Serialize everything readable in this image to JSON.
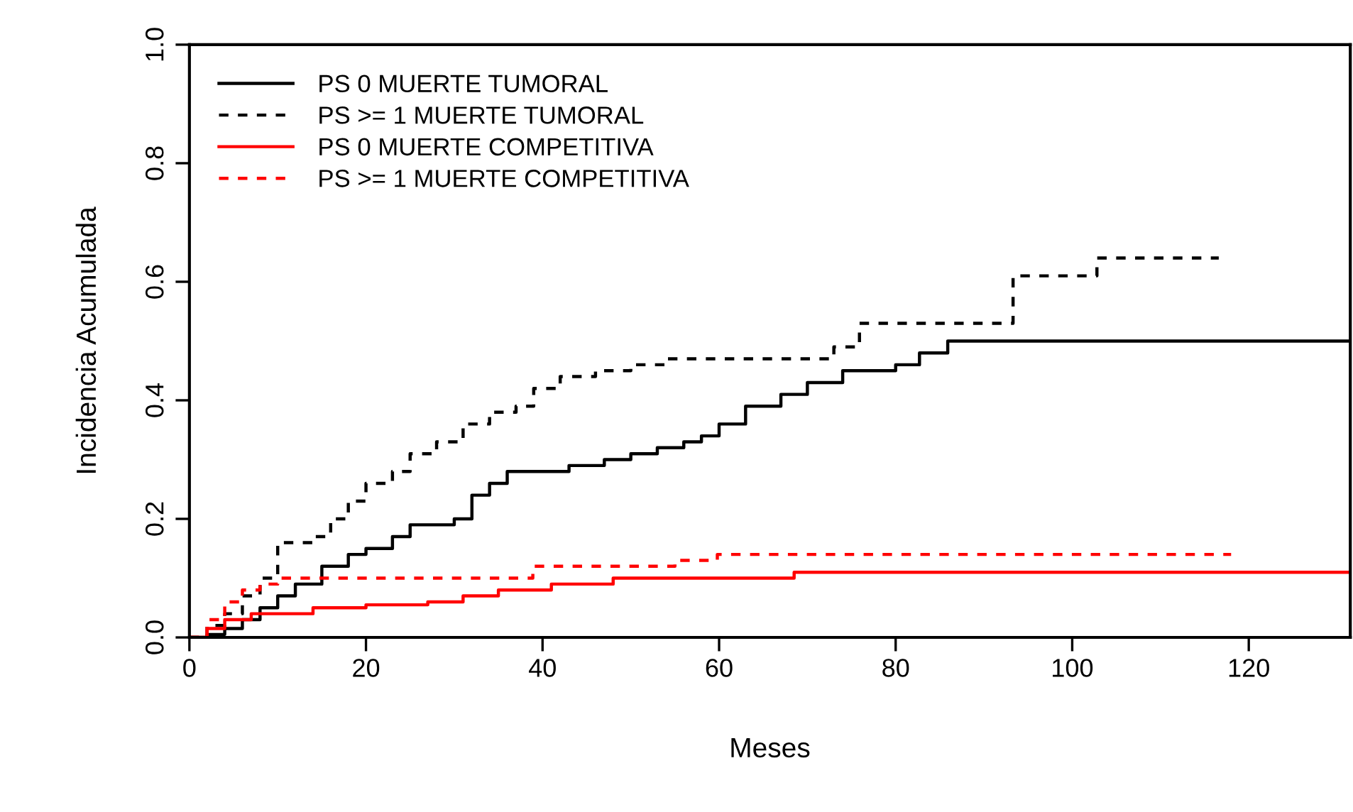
{
  "chart_data": {
    "type": "step",
    "xlabel": "Meses",
    "ylabel": "Incidencia Acumulada",
    "xlim": [
      0,
      131.5
    ],
    "ylim": [
      0,
      1
    ],
    "xticks": [
      0,
      20,
      40,
      60,
      80,
      100,
      120
    ],
    "yticks": [
      {
        "value": 0,
        "label": "0.0"
      },
      {
        "value": 0.2,
        "label": "0.2"
      },
      {
        "value": 0.4,
        "label": "0.4"
      },
      {
        "value": 0.6,
        "label": "0.6"
      },
      {
        "value": 0.8,
        "label": "0.8"
      },
      {
        "value": 1,
        "label": "1.0"
      }
    ],
    "legend": "top left",
    "grid": false,
    "series": [
      {
        "name": "PS 0 MUERTE TUMORAL",
        "color": "#000000",
        "line_style": "solid",
        "x": [
          0,
          2,
          4,
          6,
          8,
          10,
          12,
          15,
          18,
          20,
          23,
          25,
          30,
          32,
          34,
          36,
          40,
          43,
          47,
          50,
          53,
          56,
          58,
          60,
          63,
          67,
          70,
          74,
          80,
          82.7,
          85.9,
          131.5
        ],
        "values": [
          0,
          0.005,
          0.015,
          0.03,
          0.05,
          0.07,
          0.09,
          0.12,
          0.14,
          0.15,
          0.17,
          0.19,
          0.2,
          0.24,
          0.26,
          0.28,
          0.28,
          0.29,
          0.3,
          0.31,
          0.32,
          0.33,
          0.34,
          0.36,
          0.39,
          0.41,
          0.43,
          0.45,
          0.46,
          0.48,
          0.5,
          0.5
        ]
      },
      {
        "name": "PS >= 1 MUERTE TUMORAL",
        "color": "#000000",
        "line_style": "dashed",
        "x": [
          0,
          2,
          4,
          6,
          8,
          10,
          14,
          16,
          18,
          20,
          23,
          25,
          28,
          31,
          34,
          37,
          39,
          42,
          46,
          50,
          54,
          72,
          73,
          75.9,
          93.3,
          102.8,
          116.6
        ],
        "values": [
          0,
          0.02,
          0.04,
          0.07,
          0.1,
          0.16,
          0.17,
          0.2,
          0.23,
          0.26,
          0.28,
          0.31,
          0.33,
          0.36,
          0.38,
          0.39,
          0.42,
          0.44,
          0.45,
          0.46,
          0.47,
          0.47,
          0.49,
          0.53,
          0.61,
          0.64,
          0.64
        ]
      },
      {
        "name": "PS 0 MUERTE COMPETITIVA",
        "color": "#ff0000",
        "line_style": "solid",
        "x": [
          0,
          2,
          4,
          7,
          14,
          20,
          27,
          31,
          35,
          41,
          48,
          68.5,
          131.5
        ],
        "values": [
          0,
          0.015,
          0.03,
          0.04,
          0.05,
          0.055,
          0.06,
          0.07,
          0.08,
          0.09,
          0.1,
          0.11,
          0.11
        ]
      },
      {
        "name": "PS >= 1 MUERTE COMPETITIVA",
        "color": "#ff0000",
        "line_style": "dashed",
        "x": [
          0,
          2,
          4,
          6,
          8,
          10,
          38.9,
          55,
          59.8,
          118
        ],
        "values": [
          0,
          0.03,
          0.06,
          0.08,
          0.09,
          0.1,
          0.12,
          0.13,
          0.14,
          0.14
        ]
      }
    ]
  }
}
